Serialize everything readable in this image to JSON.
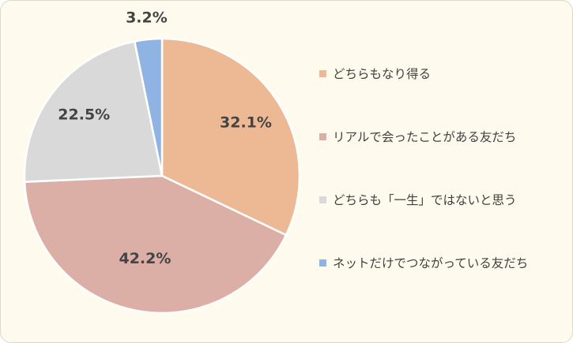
{
  "chart_data": {
    "type": "pie",
    "categories": [
      "どちらもなり得る",
      "リアルで会ったことがある友だち",
      "どちらも「一生」ではないと思う",
      "ネットだけでつながっている友だち"
    ],
    "values": [
      32.1,
      42.2,
      22.5,
      3.2
    ],
    "value_labels": [
      "32.1%",
      "42.2%",
      "22.5%",
      "3.2%"
    ],
    "colors": [
      "#edb995",
      "#dbaea6",
      "#d9d9d9",
      "#8fb4e3"
    ],
    "legend_position": "right",
    "start_angle": "12 o'clock",
    "direction": "clockwise"
  }
}
